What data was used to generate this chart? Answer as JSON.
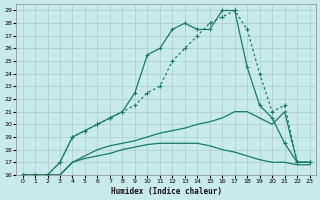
{
  "xlabel": "Humidex (Indice chaleur)",
  "background_color": "#c8eaea",
  "grid_color": "#aacccc",
  "line_color": "#1a7a62",
  "xlim": [
    -0.5,
    23.5
  ],
  "ylim": [
    16,
    29.5
  ],
  "x_ticks": [
    0,
    1,
    2,
    3,
    4,
    5,
    6,
    7,
    8,
    9,
    10,
    11,
    12,
    13,
    14,
    15,
    16,
    17,
    18,
    19,
    20,
    21,
    22,
    23
  ],
  "y_ticks": [
    16,
    17,
    18,
    19,
    20,
    21,
    22,
    23,
    24,
    25,
    26,
    27,
    28,
    29
  ],
  "line1_x": [
    0,
    1,
    2,
    3,
    4,
    5,
    6,
    7,
    8,
    9,
    10,
    11,
    12,
    13,
    14,
    15,
    16,
    17,
    18,
    19,
    20,
    21,
    22,
    23
  ],
  "line1_y": [
    16,
    16,
    16,
    17,
    19,
    19.5,
    20,
    20.5,
    21,
    21.5,
    22.5,
    23,
    25,
    26,
    27,
    28,
    28.5,
    29,
    27.5,
    24,
    21,
    21.5,
    17,
    17
  ],
  "line2_x": [
    0,
    1,
    2,
    3,
    4,
    5,
    6,
    7,
    8,
    9,
    10,
    11,
    12,
    13,
    14,
    15,
    16,
    17,
    18,
    19,
    20,
    21,
    22,
    23
  ],
  "line2_y": [
    16,
    16,
    16,
    17,
    19,
    19.5,
    20,
    20.5,
    21,
    22.5,
    25.5,
    26,
    27.5,
    28,
    27.5,
    27.5,
    29,
    29,
    24.5,
    21.5,
    20.5,
    18.5,
    17,
    17
  ],
  "line3_x": [
    0,
    1,
    2,
    3,
    4,
    5,
    6,
    7,
    8,
    9,
    10,
    11,
    12,
    13,
    14,
    15,
    16,
    17,
    18,
    19,
    20,
    21,
    22,
    23
  ],
  "line3_y": [
    16,
    16,
    16,
    16,
    17,
    17.5,
    18,
    18.3,
    18.5,
    18.7,
    19,
    19.3,
    19.5,
    19.7,
    20,
    20.2,
    20.5,
    21,
    21,
    20.5,
    20,
    21,
    17,
    17
  ],
  "line4_x": [
    0,
    1,
    2,
    3,
    4,
    5,
    6,
    7,
    8,
    9,
    10,
    11,
    12,
    13,
    14,
    15,
    16,
    17,
    18,
    19,
    20,
    21,
    22,
    23
  ],
  "line4_y": [
    16,
    16,
    16,
    16,
    17,
    17.3,
    17.5,
    17.7,
    18,
    18.2,
    18.4,
    18.5,
    18.5,
    18.5,
    18.5,
    18.3,
    18,
    17.8,
    17.5,
    17.2,
    17,
    17,
    16.8,
    16.8
  ]
}
